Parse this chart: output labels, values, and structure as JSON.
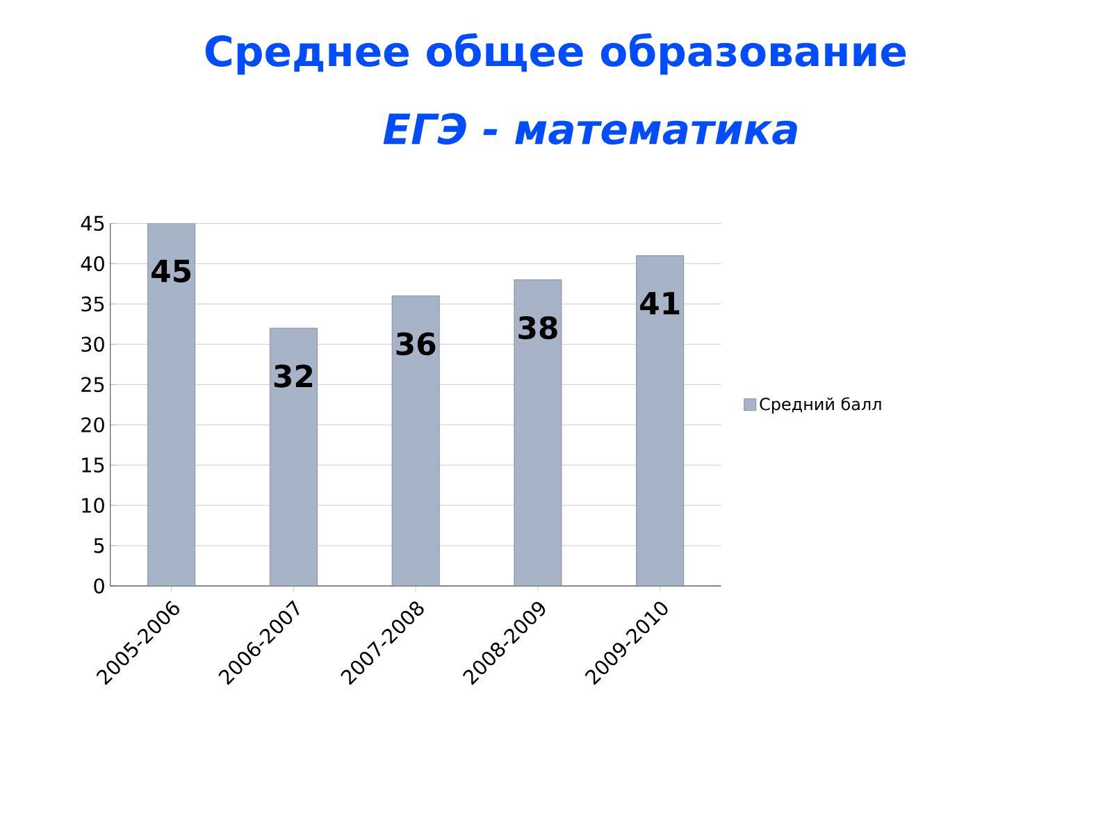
{
  "chart_data": {
    "type": "bar",
    "title": "Среднее общее образование",
    "subtitle": "ЕГЭ - математика",
    "categories": [
      "2005-2006",
      "2006-2007",
      "2007-2008",
      "2008-2009",
      "2009-2010"
    ],
    "series": [
      {
        "name": "Средний балл",
        "color": "#a7b3c7",
        "values": [
          45,
          32,
          36,
          38,
          41
        ]
      }
    ],
    "ylim": [
      0,
      45
    ],
    "yticks": [
      0,
      5,
      10,
      15,
      20,
      25,
      30,
      35,
      40,
      45
    ],
    "grid": "y",
    "legend": "right",
    "data_labels": true
  }
}
